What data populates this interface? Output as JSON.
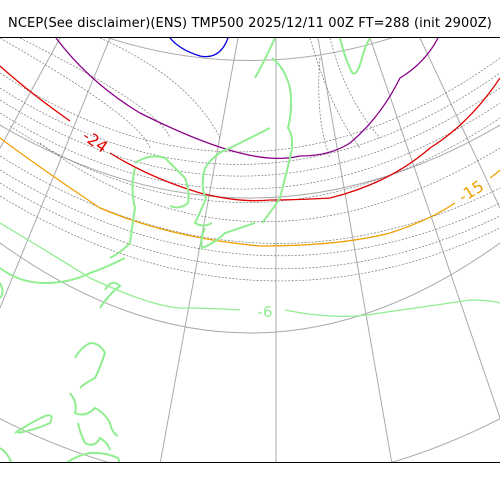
{
  "title": "NCEP(See disclaimer)(ENS) TMP500 2025/12/11 00Z FT=288 (init 2900Z)",
  "labels": {
    "red": "-24",
    "orange": "-15",
    "green": "-6"
  },
  "colors": {
    "coastline": "#90ee90",
    "graticule": "#aaaaaa",
    "contour_minor": "#777777",
    "blue": "#0000dd",
    "purple": "#880088",
    "red": "#e00000",
    "orange": "#f0a000",
    "green": "#90ee90"
  }
}
